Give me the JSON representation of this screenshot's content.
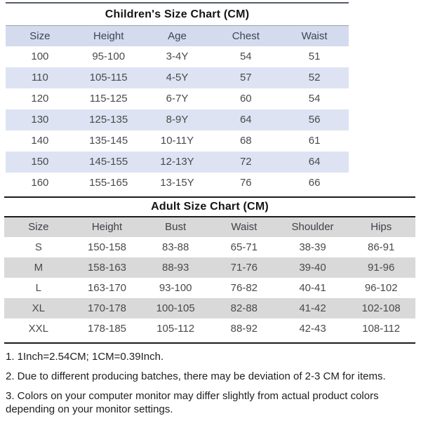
{
  "children_table": {
    "title": "Children's Size Chart (CM)",
    "headers": [
      "Size",
      "Height",
      "Age",
      "Chest",
      "Waist"
    ],
    "rows": [
      [
        "100",
        "95-100",
        "3-4Y",
        "54",
        "51"
      ],
      [
        "110",
        "105-115",
        "4-5Y",
        "57",
        "52"
      ],
      [
        "120",
        "115-125",
        "6-7Y",
        "60",
        "54"
      ],
      [
        "130",
        "125-135",
        "8-9Y",
        "64",
        "56"
      ],
      [
        "140",
        "135-145",
        "10-11Y",
        "68",
        "61"
      ],
      [
        "150",
        "145-155",
        "12-13Y",
        "72",
        "64"
      ],
      [
        "160",
        "155-165",
        "13-15Y",
        "76",
        "66"
      ]
    ]
  },
  "adult_table": {
    "title": "Adult Size Chart (CM)",
    "headers": [
      "Size",
      "Height",
      "Bust",
      "Waist",
      "Shoulder",
      "Hips"
    ],
    "rows": [
      [
        "S",
        "150-158",
        "83-88",
        "65-71",
        "38-39",
        "86-91"
      ],
      [
        "M",
        "158-163",
        "88-93",
        "71-76",
        "39-40",
        "91-96"
      ],
      [
        "L",
        "163-170",
        "93-100",
        "76-82",
        "40-41",
        "96-102"
      ],
      [
        "XL",
        "170-178",
        "100-105",
        "82-88",
        "41-42",
        "102-108"
      ],
      [
        "XXL",
        "178-185",
        "105-112",
        "88-92",
        "42-43",
        "108-112"
      ]
    ]
  },
  "notes": [
    "1. 1Inch=2.54CM; 1CM=0.39Inch.",
    "2. Due to different producing batches, there may be deviation of 2-3 CM for items.",
    "3. Colors on your computer monitor may differ slightly from actual product colors depending on your monitor settings."
  ],
  "colors": {
    "children_header_band": "#d4dbee",
    "children_row_band": "#dde3f3",
    "adult_band": "#d9d9d9",
    "rule_dark": "#1c1c1c",
    "rule_slate": "#575d68"
  }
}
